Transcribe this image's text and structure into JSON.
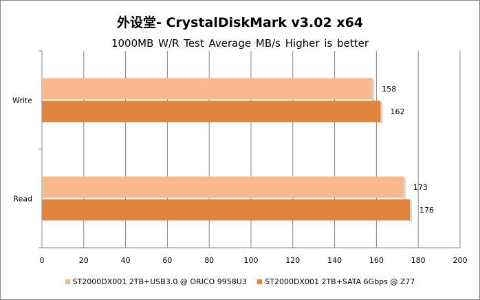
{
  "chart_data": {
    "type": "bar",
    "orientation": "horizontal",
    "title": "外设堂- CrystalDiskMark v3.02 x64",
    "subtitle": "1000MB W/R Test   Average MB/s   Higher is better",
    "categories": [
      "Write",
      "Read"
    ],
    "series": [
      {
        "name": "ST2000DX001 2TB+USB3.0 @ ORICO 9958U3",
        "values": [
          158,
          173
        ],
        "color": "#f9b98f"
      },
      {
        "name": "ST2000DX001 2TB+SATA 6Gbps @ Z77",
        "values": [
          162,
          176
        ],
        "color": "#e0843e"
      }
    ],
    "xlim": [
      0,
      200
    ],
    "xticks": [
      "0",
      "20",
      "40",
      "60",
      "80",
      "100",
      "120",
      "140",
      "160",
      "180",
      "200"
    ],
    "xtick_values": [
      0,
      20,
      40,
      60,
      80,
      100,
      120,
      140,
      160,
      180,
      200
    ],
    "grid": true,
    "legend_position": "bottom"
  }
}
